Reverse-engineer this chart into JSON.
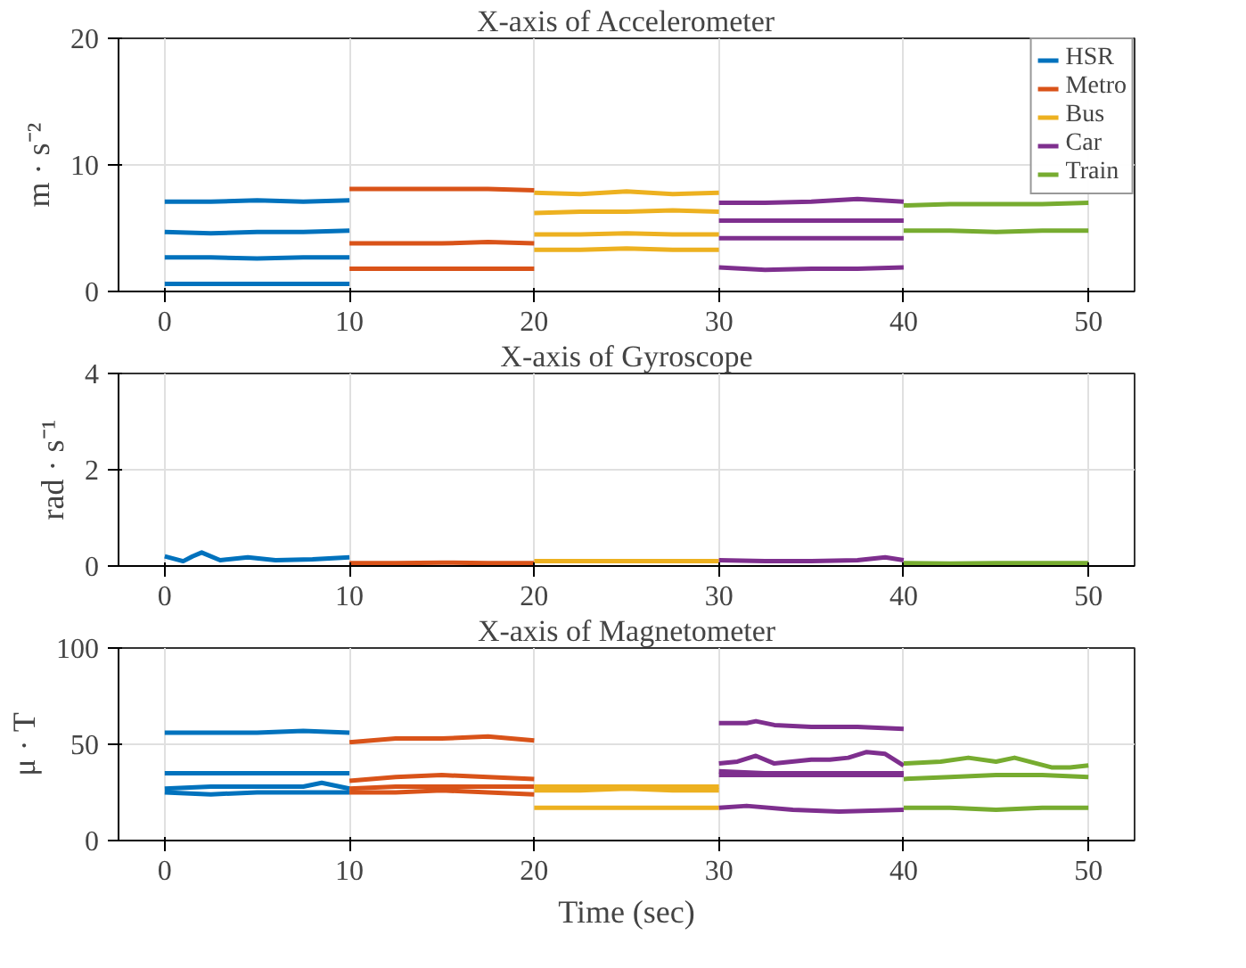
{
  "chart_data": [
    {
      "type": "line",
      "title": "X-axis of Accelerometer",
      "ylabel": "m · s⁻²",
      "xlim": [
        -2.5,
        52.5
      ],
      "ylim": [
        0,
        20
      ],
      "xticks": [
        0,
        10,
        20,
        30,
        40,
        50
      ],
      "yticks": [
        0,
        10,
        20
      ],
      "grid": true,
      "legend": "top right",
      "line_style": "solid",
      "series": [
        {
          "name": "HSR",
          "color": "#0072bd",
          "x": [
            0,
            2.5,
            5,
            7.5,
            10
          ],
          "values": [
            7.1,
            7.1,
            7.2,
            7.1,
            7.2
          ]
        },
        {
          "color": "#0072bd",
          "x": [
            0,
            2.5,
            5,
            7.5,
            10
          ],
          "values": [
            4.7,
            4.6,
            4.7,
            4.7,
            4.8
          ]
        },
        {
          "color": "#0072bd",
          "x": [
            0,
            2.5,
            5,
            7.5,
            10
          ],
          "values": [
            2.7,
            2.7,
            2.6,
            2.7,
            2.7
          ]
        },
        {
          "color": "#0072bd",
          "x": [
            0,
            2.5,
            5,
            7.5,
            10
          ],
          "values": [
            0.6,
            0.6,
            0.6,
            0.6,
            0.6
          ]
        },
        {
          "name": "Metro",
          "color": "#d95319",
          "x": [
            10,
            12.5,
            15,
            17.5,
            20
          ],
          "values": [
            8.1,
            8.1,
            8.1,
            8.1,
            8.0
          ]
        },
        {
          "color": "#d95319",
          "x": [
            10,
            12.5,
            15,
            17.5,
            20
          ],
          "values": [
            3.8,
            3.8,
            3.8,
            3.9,
            3.8
          ]
        },
        {
          "color": "#d95319",
          "x": [
            10,
            12.5,
            15,
            17.5,
            20
          ],
          "values": [
            1.8,
            1.8,
            1.8,
            1.8,
            1.8
          ]
        },
        {
          "name": "Bus",
          "color": "#edb120",
          "x": [
            20,
            22.5,
            25,
            27.5,
            30
          ],
          "values": [
            7.8,
            7.7,
            7.9,
            7.7,
            7.8
          ]
        },
        {
          "color": "#edb120",
          "x": [
            20,
            22.5,
            25,
            27.5,
            30
          ],
          "values": [
            6.2,
            6.3,
            6.3,
            6.4,
            6.3
          ]
        },
        {
          "color": "#edb120",
          "x": [
            20,
            22.5,
            25,
            27.5,
            30
          ],
          "values": [
            4.5,
            4.5,
            4.6,
            4.5,
            4.5
          ]
        },
        {
          "color": "#edb120",
          "x": [
            20,
            22.5,
            25,
            27.5,
            30
          ],
          "values": [
            3.3,
            3.3,
            3.4,
            3.3,
            3.3
          ]
        },
        {
          "name": "Car",
          "color": "#7e2f8e",
          "x": [
            30,
            32.5,
            35,
            37.5,
            40
          ],
          "values": [
            7.0,
            7.0,
            7.1,
            7.3,
            7.1
          ]
        },
        {
          "color": "#7e2f8e",
          "x": [
            30,
            32.5,
            35,
            37.5,
            40
          ],
          "values": [
            5.6,
            5.6,
            5.6,
            5.6,
            5.6
          ]
        },
        {
          "color": "#7e2f8e",
          "x": [
            30,
            32.5,
            35,
            37.5,
            40
          ],
          "values": [
            4.2,
            4.2,
            4.2,
            4.2,
            4.2
          ]
        },
        {
          "color": "#7e2f8e",
          "x": [
            30,
            32.5,
            35,
            37.5,
            40
          ],
          "values": [
            1.9,
            1.7,
            1.8,
            1.8,
            1.9
          ]
        },
        {
          "name": "Train",
          "color": "#77ac30",
          "x": [
            40,
            42.5,
            45,
            47.5,
            50
          ],
          "values": [
            6.8,
            6.9,
            6.9,
            6.9,
            7.0
          ]
        },
        {
          "color": "#77ac30",
          "x": [
            40,
            42.5,
            45,
            47.5,
            50
          ],
          "values": [
            4.8,
            4.8,
            4.7,
            4.8,
            4.8
          ]
        }
      ]
    },
    {
      "type": "line",
      "title": "X-axis of Gyroscope",
      "ylabel": "rad · s⁻¹",
      "xlim": [
        -2.5,
        52.5
      ],
      "ylim": [
        0,
        4
      ],
      "xticks": [
        0,
        10,
        20,
        30,
        40,
        50
      ],
      "yticks": [
        0,
        2,
        4
      ],
      "grid": true,
      "legend": false,
      "line_style": "solid",
      "series": [
        {
          "color": "#0072bd",
          "x": [
            0,
            1,
            1.5,
            2,
            3,
            4.5,
            6,
            8,
            10
          ],
          "values": [
            0.2,
            0.1,
            0.2,
            0.28,
            0.12,
            0.18,
            0.12,
            0.14,
            0.18
          ]
        },
        {
          "color": "#d95319",
          "x": [
            10,
            12.5,
            15,
            17.5,
            20
          ],
          "values": [
            0.06,
            0.06,
            0.07,
            0.06,
            0.06
          ]
        },
        {
          "color": "#edb120",
          "x": [
            20,
            22.5,
            25,
            27.5,
            30
          ],
          "values": [
            0.1,
            0.1,
            0.1,
            0.1,
            0.1
          ]
        },
        {
          "color": "#7e2f8e",
          "x": [
            30,
            32.5,
            35,
            37.5,
            39,
            40
          ],
          "values": [
            0.12,
            0.1,
            0.1,
            0.12,
            0.18,
            0.12
          ]
        },
        {
          "color": "#77ac30",
          "x": [
            40,
            42.5,
            45,
            47.5,
            50
          ],
          "values": [
            0.06,
            0.05,
            0.06,
            0.06,
            0.06
          ]
        }
      ]
    },
    {
      "type": "line",
      "title": "X-axis of Magnetometer",
      "xlabel": "Time (sec)",
      "ylabel": "μ · T",
      "xlim": [
        -2.5,
        52.5
      ],
      "ylim": [
        0,
        100
      ],
      "xticks": [
        0,
        10,
        20,
        30,
        40,
        50
      ],
      "yticks": [
        0,
        50,
        100
      ],
      "grid": true,
      "legend": false,
      "line_style": "solid",
      "series": [
        {
          "color": "#0072bd",
          "x": [
            0,
            2.5,
            5,
            7.5,
            10
          ],
          "values": [
            56,
            56,
            56,
            57,
            56
          ]
        },
        {
          "color": "#0072bd",
          "x": [
            0,
            2.5,
            5,
            7.5,
            10
          ],
          "values": [
            35,
            35,
            35,
            35,
            35
          ]
        },
        {
          "color": "#0072bd",
          "x": [
            0,
            2.5,
            5,
            7.5,
            8.5,
            10
          ],
          "values": [
            27,
            28,
            28,
            28,
            30,
            27
          ]
        },
        {
          "color": "#0072bd",
          "x": [
            0,
            2.5,
            5,
            7.5,
            10
          ],
          "values": [
            25,
            24,
            25,
            25,
            25
          ]
        },
        {
          "color": "#d95319",
          "x": [
            10,
            12.5,
            15,
            17.5,
            20
          ],
          "values": [
            51,
            53,
            53,
            54,
            52
          ]
        },
        {
          "color": "#d95319",
          "x": [
            10,
            12.5,
            15,
            17.5,
            20
          ],
          "values": [
            31,
            33,
            34,
            33,
            32
          ]
        },
        {
          "color": "#d95319",
          "x": [
            10,
            12.5,
            15,
            17.5,
            20
          ],
          "values": [
            27,
            28,
            28,
            28,
            28
          ]
        },
        {
          "color": "#d95319",
          "x": [
            10,
            12.5,
            15,
            17.5,
            20
          ],
          "values": [
            25,
            25,
            26,
            25,
            24
          ]
        },
        {
          "color": "#edb120",
          "x": [
            20,
            22.5,
            25,
            27.5,
            30
          ],
          "values": [
            28,
            28,
            28,
            28,
            28
          ]
        },
        {
          "color": "#edb120",
          "x": [
            20,
            22.5,
            25,
            27.5,
            30
          ],
          "values": [
            26,
            26,
            27,
            26,
            26
          ]
        },
        {
          "color": "#edb120",
          "x": [
            20,
            22.5,
            25,
            27.5,
            30
          ],
          "values": [
            17,
            17,
            17,
            17,
            17
          ]
        },
        {
          "color": "#7e2f8e",
          "x": [
            30,
            31.5,
            32,
            33,
            35,
            37.5,
            40
          ],
          "values": [
            61,
            61,
            62,
            60,
            59,
            59,
            58
          ]
        },
        {
          "color": "#7e2f8e",
          "x": [
            30,
            31,
            32,
            33,
            35,
            36,
            37,
            38,
            39,
            40
          ],
          "values": [
            40,
            41,
            44,
            40,
            42,
            42,
            43,
            46,
            45,
            39
          ]
        },
        {
          "color": "#7e2f8e",
          "x": [
            30,
            32.5,
            35,
            37.5,
            40
          ],
          "values": [
            36,
            35,
            35,
            35,
            35
          ]
        },
        {
          "color": "#7e2f8e",
          "x": [
            30,
            32.5,
            35,
            37.5,
            40
          ],
          "values": [
            34,
            34,
            34,
            34,
            34
          ]
        },
        {
          "color": "#7e2f8e",
          "x": [
            30,
            31.5,
            34,
            36.5,
            40
          ],
          "values": [
            17,
            18,
            16,
            15,
            16
          ]
        },
        {
          "color": "#77ac30",
          "x": [
            40,
            42,
            43.5,
            45,
            46,
            48,
            49,
            50
          ],
          "values": [
            40,
            41,
            43,
            41,
            43,
            38,
            38,
            39
          ]
        },
        {
          "color": "#77ac30",
          "x": [
            40,
            42.5,
            45,
            47.5,
            50
          ],
          "values": [
            32,
            33,
            34,
            34,
            33
          ]
        },
        {
          "color": "#77ac30",
          "x": [
            40,
            42.5,
            45,
            47.5,
            50
          ],
          "values": [
            17,
            17,
            16,
            17,
            17
          ]
        }
      ]
    }
  ]
}
